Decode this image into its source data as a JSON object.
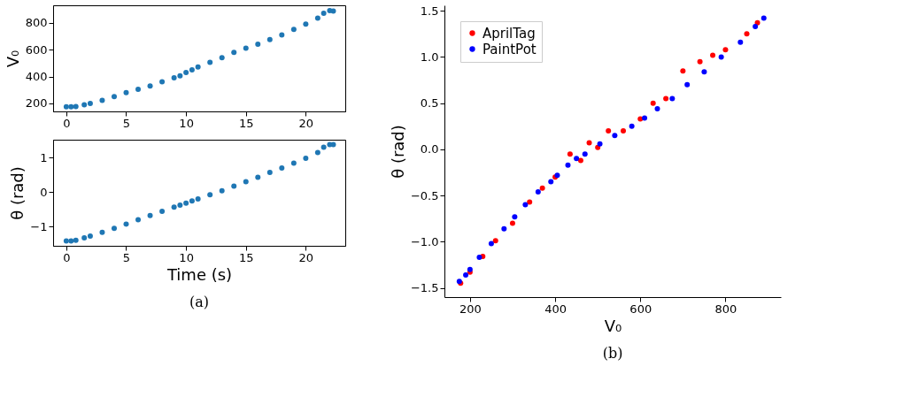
{
  "chart_data": [
    {
      "type": "scatter",
      "ylabel": "V₀",
      "xlim": [
        -1.1,
        23.3
      ],
      "ylim": [
        140,
        930
      ],
      "xticks": [
        0,
        5,
        10,
        15,
        20
      ],
      "yticks": [
        200,
        400,
        600,
        800
      ],
      "marker": "circle",
      "grid": false,
      "series": [
        {
          "color": "#1f77b4",
          "x": [
            0,
            0.4,
            0.8,
            1.5,
            2,
            3,
            4,
            5,
            6,
            7,
            8,
            9,
            9.5,
            10,
            10.5,
            11,
            12,
            13,
            14,
            15,
            16,
            17,
            18,
            19,
            20,
            21,
            21.5,
            22,
            22.3
          ],
          "values": [
            175,
            175,
            177,
            190,
            200,
            222,
            250,
            280,
            305,
            330,
            360,
            390,
            405,
            430,
            450,
            470,
            505,
            540,
            580,
            610,
            640,
            675,
            710,
            750,
            790,
            835,
            870,
            890,
            888
          ]
        }
      ]
    },
    {
      "type": "scatter",
      "xlabel": "Time (s)",
      "ylabel": "θ (rad)",
      "annotations": [
        "(a)"
      ],
      "xlim": [
        -1.1,
        23.3
      ],
      "ylim": [
        -1.56,
        1.52
      ],
      "xticks": [
        0,
        5,
        10,
        15,
        20
      ],
      "yticks": [
        -1,
        0,
        1
      ],
      "marker": "circle",
      "grid": false,
      "series": [
        {
          "color": "#1f77b4",
          "x": [
            0,
            0.4,
            0.8,
            1.5,
            2,
            3,
            4,
            5,
            6,
            7,
            8,
            9,
            9.5,
            10,
            10.5,
            11,
            12,
            13,
            14,
            15,
            16,
            17,
            18,
            19,
            20,
            21,
            21.5,
            22,
            22.3
          ],
          "values": [
            -1.42,
            -1.42,
            -1.4,
            -1.33,
            -1.28,
            -1.17,
            -1.05,
            -0.93,
            -0.8,
            -0.68,
            -0.56,
            -0.44,
            -0.38,
            -0.32,
            -0.26,
            -0.2,
            -0.08,
            0.04,
            0.17,
            0.3,
            0.43,
            0.57,
            0.7,
            0.84,
            0.98,
            1.15,
            1.3,
            1.38,
            1.38
          ]
        }
      ]
    },
    {
      "type": "scatter",
      "xlabel": "V₀",
      "ylabel": "θ (rad)",
      "annotations": [
        "(b)"
      ],
      "xlim": [
        140,
        930
      ],
      "ylim": [
        -1.6,
        1.56
      ],
      "xticks": [
        200,
        400,
        600,
        800
      ],
      "yticks": [
        -1.5,
        {
          "value": -1,
          "label": "−1.0"
        },
        -0.5,
        {
          "value": 0,
          "label": "0.0"
        },
        0.5,
        {
          "value": 1,
          "label": "1.0"
        },
        1.5
      ],
      "marker": "circle",
      "grid": false,
      "legend": "top left",
      "series": [
        {
          "name": "AprilTag",
          "color": "#ff0000",
          "x": [
            178,
            200,
            230,
            260,
            300,
            340,
            370,
            400,
            435,
            460,
            480,
            500,
            525,
            560,
            600,
            630,
            660,
            700,
            740,
            770,
            800,
            850,
            875
          ],
          "values": [
            -1.45,
            -1.33,
            -1.16,
            -0.99,
            -0.8,
            -0.57,
            -0.42,
            -0.3,
            -0.05,
            -0.12,
            0.07,
            0.02,
            0.2,
            0.2,
            0.33,
            0.5,
            0.55,
            0.85,
            0.95,
            1.02,
            1.08,
            1.25,
            1.37
          ]
        },
        {
          "name": "PaintPot",
          "color": "#0000ff",
          "x": [
            175,
            190,
            200,
            222,
            250,
            280,
            305,
            330,
            360,
            390,
            405,
            430,
            450,
            470,
            505,
            540,
            580,
            610,
            640,
            675,
            710,
            750,
            790,
            835,
            870,
            890
          ],
          "values": [
            -1.43,
            -1.36,
            -1.3,
            -1.17,
            -1.02,
            -0.86,
            -0.73,
            -0.6,
            -0.46,
            -0.35,
            -0.28,
            -0.17,
            -0.1,
            -0.05,
            0.06,
            0.15,
            0.25,
            0.34,
            0.44,
            0.55,
            0.7,
            0.84,
            1.0,
            1.16,
            1.33,
            1.42
          ]
        }
      ]
    }
  ]
}
